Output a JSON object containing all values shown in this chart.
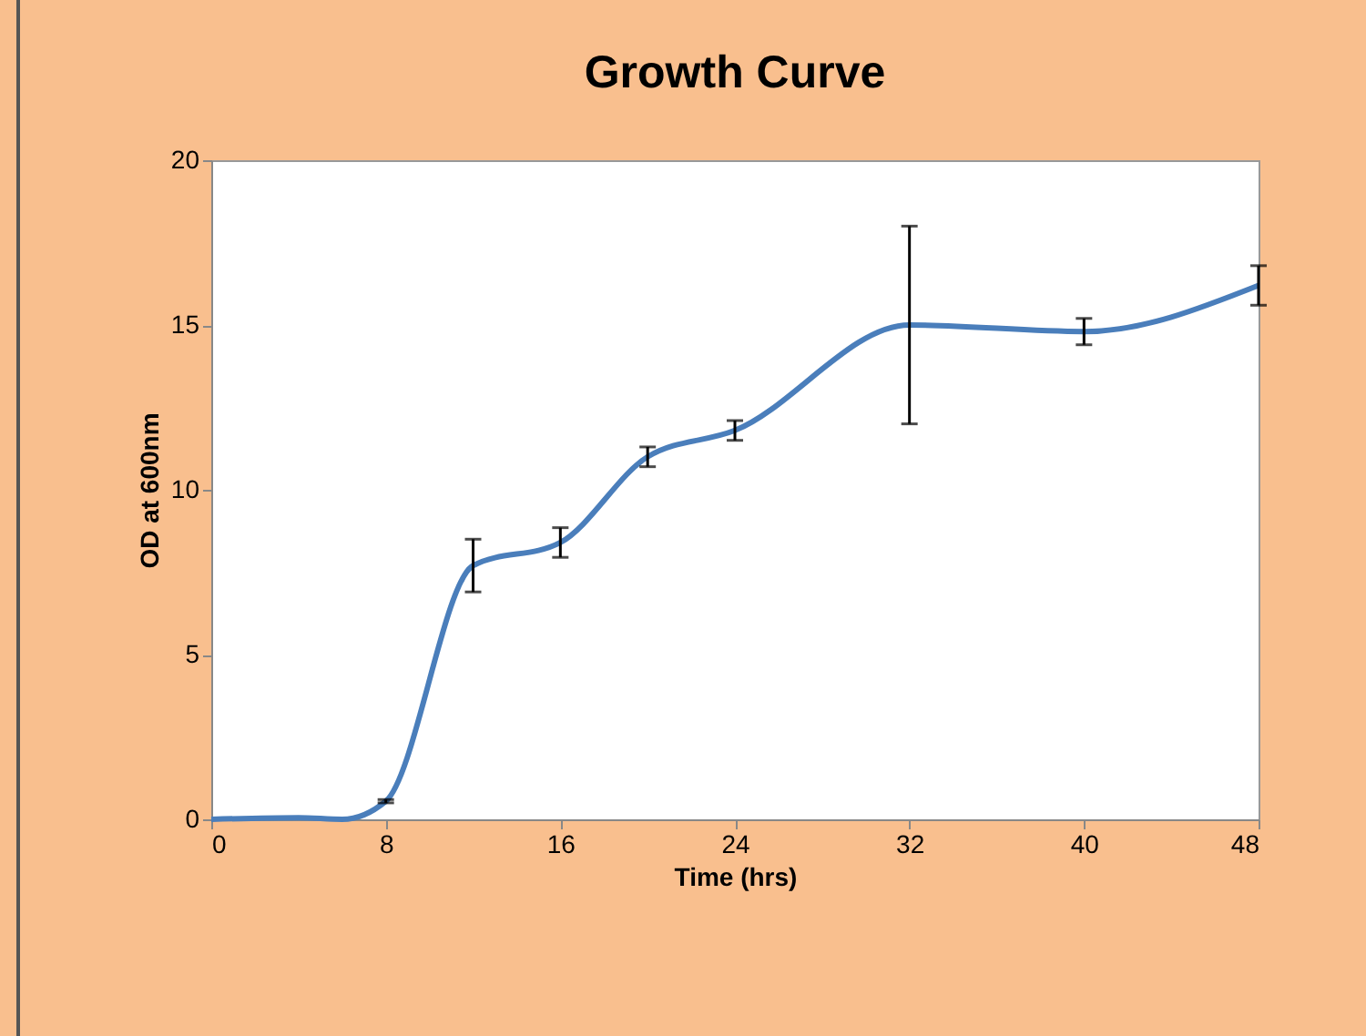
{
  "chart_data": {
    "type": "line",
    "title": "Growth Curve",
    "xlabel": "Time (hrs)",
    "ylabel": "OD at 600nm",
    "x": [
      0,
      4,
      6,
      8,
      12,
      16,
      20,
      24,
      32,
      40,
      48
    ],
    "series": [
      {
        "color": "#4a7ebb",
        "values": [
          0,
          0.05,
          0,
          0.55,
          7.7,
          8.4,
          11.0,
          11.8,
          15.0,
          14.8,
          16.2
        ],
        "errors": [
          null,
          null,
          null,
          0.05,
          0.8,
          0.45,
          0.3,
          0.3,
          3.0,
          0.4,
          0.6
        ]
      }
    ],
    "xlim": [
      0,
      48
    ],
    "xticks": [
      0,
      8,
      16,
      24,
      32,
      40,
      48
    ],
    "ylim": [
      0,
      20
    ],
    "yticks": [
      0,
      5,
      10,
      15,
      20
    ],
    "grid": false,
    "marker": "none",
    "line_style": "solid"
  }
}
